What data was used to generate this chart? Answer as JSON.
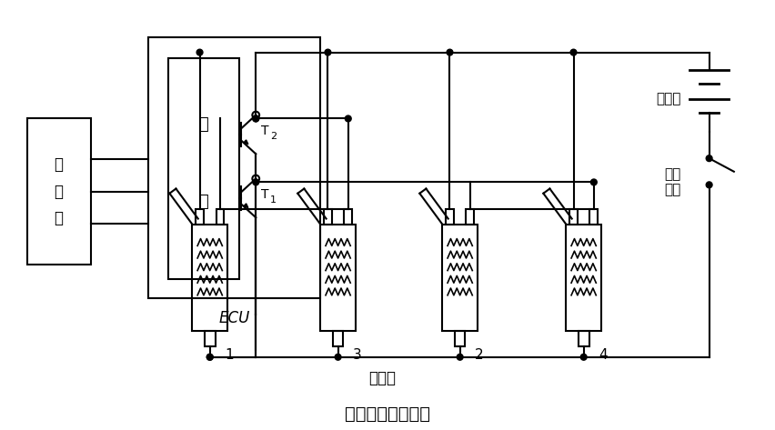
{
  "title": "分组喷射控制电路",
  "label_sensor": "传\n感\n器",
  "label_wei": "微",
  "label_ji": "机",
  "label_ecu": "ECU",
  "label_battery": "蓄电池",
  "label_switch_line1": "点火",
  "label_switch_line2": "开关",
  "label_injector": "喷油器",
  "injector_labels": [
    "1",
    "3",
    "2",
    "4"
  ],
  "line_color": "#000000",
  "bg_color": "#ffffff",
  "lw": 1.5
}
